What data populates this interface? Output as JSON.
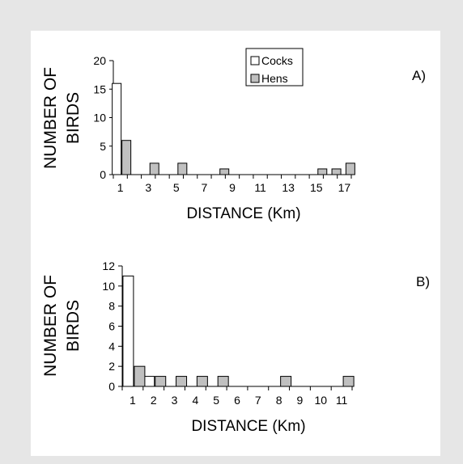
{
  "chart_data": [
    {
      "type": "bar",
      "panel_label": "A)",
      "xlabel": "DISTANCE (Km)",
      "ylabel": [
        "NUMBER OF",
        "BIRDS"
      ],
      "ylim": [
        0,
        20
      ],
      "yticks": [
        0,
        5,
        10,
        15,
        20
      ],
      "xticks": [
        "1",
        "3",
        "5",
        "7",
        "9",
        "11",
        "13",
        "15",
        "17"
      ],
      "categories": [
        "1",
        "2",
        "3",
        "4",
        "5",
        "6",
        "7",
        "8",
        "9",
        "10",
        "11",
        "12",
        "13",
        "14",
        "15",
        "16",
        "17"
      ],
      "series": [
        {
          "name": "Cocks",
          "values": [
            16,
            0,
            0,
            0,
            0,
            0,
            0,
            0,
            0,
            0,
            0,
            0,
            0,
            0,
            0,
            0,
            0
          ]
        },
        {
          "name": "Hens",
          "values": [
            6,
            0,
            2,
            0,
            2,
            0,
            0,
            1,
            0,
            0,
            0,
            0,
            0,
            0,
            1,
            1,
            2
          ]
        }
      ],
      "legend": "top-center",
      "grid": false
    },
    {
      "type": "bar",
      "panel_label": "B)",
      "xlabel": "DISTANCE (Km)",
      "ylabel": [
        "NUMBER OF",
        "BIRDS"
      ],
      "ylim": [
        0,
        12
      ],
      "yticks": [
        0,
        2,
        4,
        6,
        8,
        10,
        12
      ],
      "xticks": [
        "1",
        "2",
        "3",
        "4",
        "5",
        "6",
        "7",
        "8",
        "9",
        "10",
        "11"
      ],
      "categories": [
        "1",
        "2",
        "3",
        "4",
        "5",
        "6",
        "7",
        "8",
        "9",
        "10",
        "11"
      ],
      "series": [
        {
          "name": "Cocks",
          "values": [
            11,
            1,
            0,
            0,
            0,
            0,
            0,
            0,
            0,
            0,
            0
          ]
        },
        {
          "name": "Hens",
          "values": [
            2,
            1,
            1,
            1,
            1,
            0,
            0,
            1,
            0,
            0,
            1
          ]
        }
      ],
      "grid": false
    }
  ],
  "colors": {
    "cocks": "#ffffff",
    "hens": "#c0c0c0",
    "stroke": "#000000"
  }
}
